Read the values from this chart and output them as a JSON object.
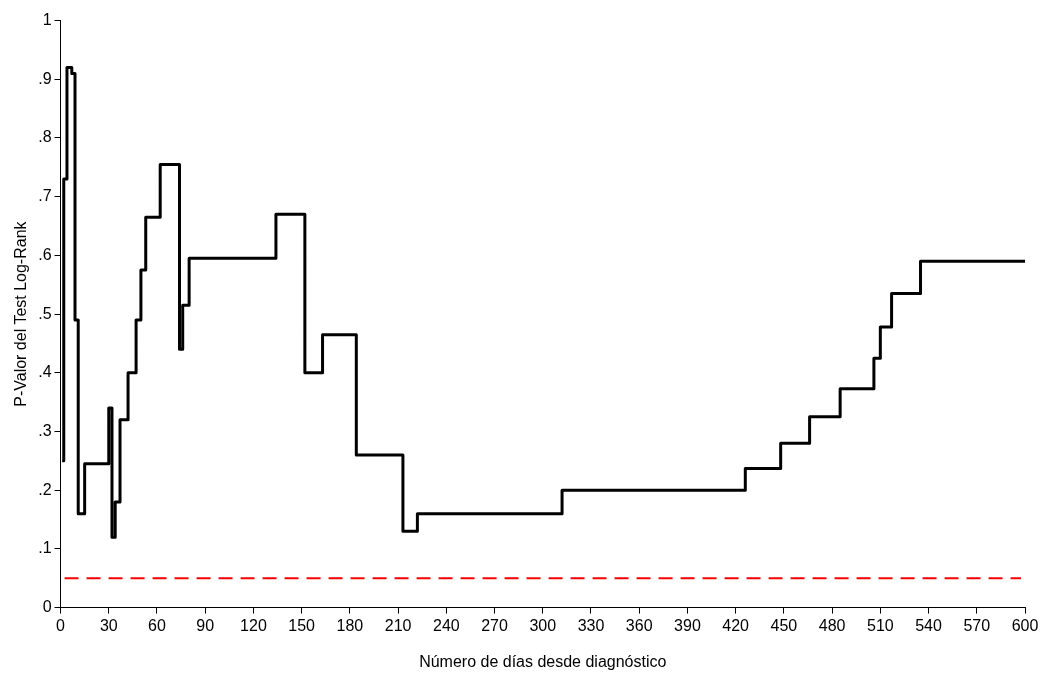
{
  "chart_data": {
    "type": "step",
    "xlabel": "Número de días desde diagnóstico",
    "ylabel": "P-Valor del Test Log-Rank",
    "series": [
      {
        "color": "#000000",
        "x": [
          1,
          2,
          4,
          7,
          9,
          11,
          15,
          30,
          32,
          34,
          37,
          42,
          47,
          50,
          53,
          62,
          74,
          76,
          80,
          134,
          152,
          163,
          184,
          213,
          222,
          312,
          426,
          448,
          466,
          485,
          506,
          510,
          517,
          535,
          600
        ],
        "values": [
          0.25,
          0.73,
          0.92,
          0.91,
          0.49,
          0.16,
          0.245,
          0.34,
          0.12,
          0.18,
          0.32,
          0.4,
          0.49,
          0.575,
          0.665,
          0.755,
          0.44,
          0.515,
          0.595,
          0.67,
          0.4,
          0.465,
          0.26,
          0.13,
          0.16,
          0.2,
          0.237,
          0.28,
          0.325,
          0.373,
          0.425,
          0.478,
          0.535,
          0.59,
          0.59
        ]
      }
    ],
    "xlim": [
      0,
      600
    ],
    "xticks": [
      0,
      30,
      60,
      90,
      120,
      150,
      180,
      210,
      240,
      270,
      300,
      330,
      360,
      390,
      420,
      450,
      480,
      510,
      540,
      570,
      600
    ],
    "ylim": [
      0,
      1
    ],
    "yticks": [
      0,
      {
        "value": 0.1,
        "label": ".1"
      },
      {
        "value": 0.2,
        "label": ".2"
      },
      {
        "value": 0.3,
        "label": ".3"
      },
      {
        "value": 0.4,
        "label": ".4"
      },
      {
        "value": 0.5,
        "label": ".5"
      },
      {
        "value": 0.6,
        "label": ".6"
      },
      {
        "value": 0.7,
        "label": ".7"
      },
      {
        "value": 0.8,
        "label": ".8"
      },
      {
        "value": 0.9,
        "label": ".9"
      },
      1
    ],
    "ref_lines": [
      {
        "axis": "y",
        "value": 0.05,
        "color": "#ff0000",
        "line_style": "dashed"
      }
    ],
    "grid": false,
    "legend": false
  }
}
